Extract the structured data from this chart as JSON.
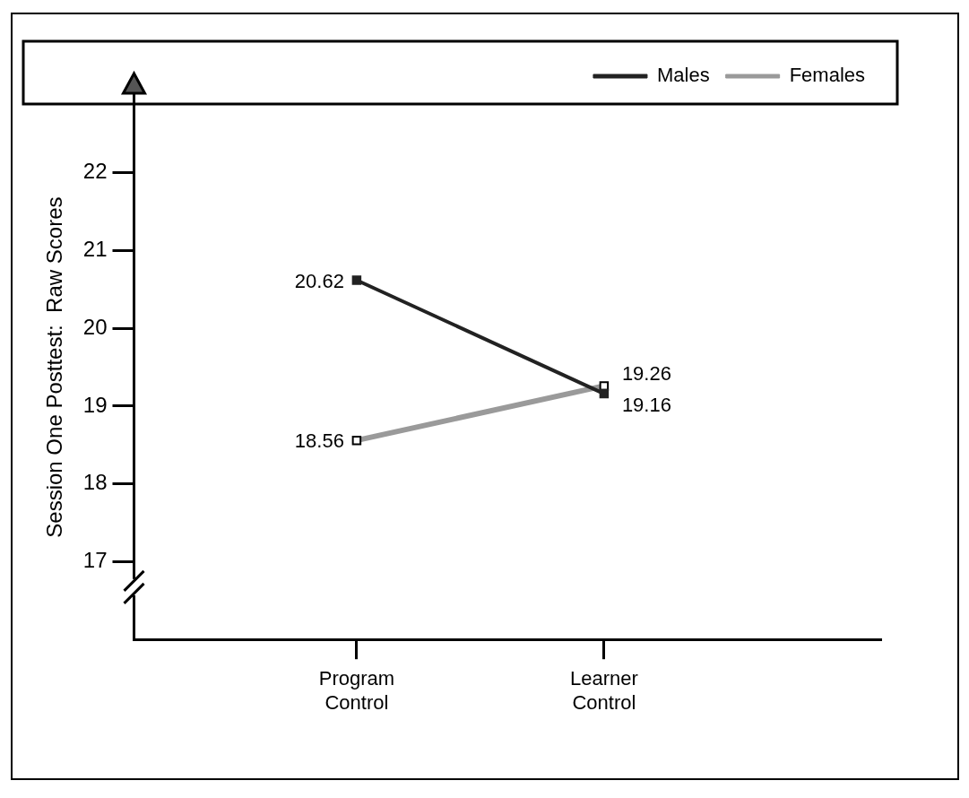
{
  "chart_data": {
    "type": "line",
    "ylabel": "Session One Posttest:  Raw Scores",
    "categories": [
      "Program Control",
      "Learner Control"
    ],
    "series": [
      {
        "name": "Males",
        "color": "#222222",
        "values": [
          20.62,
          19.16
        ]
      },
      {
        "name": "Females",
        "color": "#9a9a9a",
        "values": [
          18.56,
          19.26
        ]
      }
    ],
    "ylim": [
      16,
      23
    ],
    "yticks": [
      17,
      18,
      19,
      20,
      21,
      22
    ],
    "grid": false,
    "legend": "top right",
    "marker": "square",
    "line_style": "solid",
    "data_labels": true
  }
}
